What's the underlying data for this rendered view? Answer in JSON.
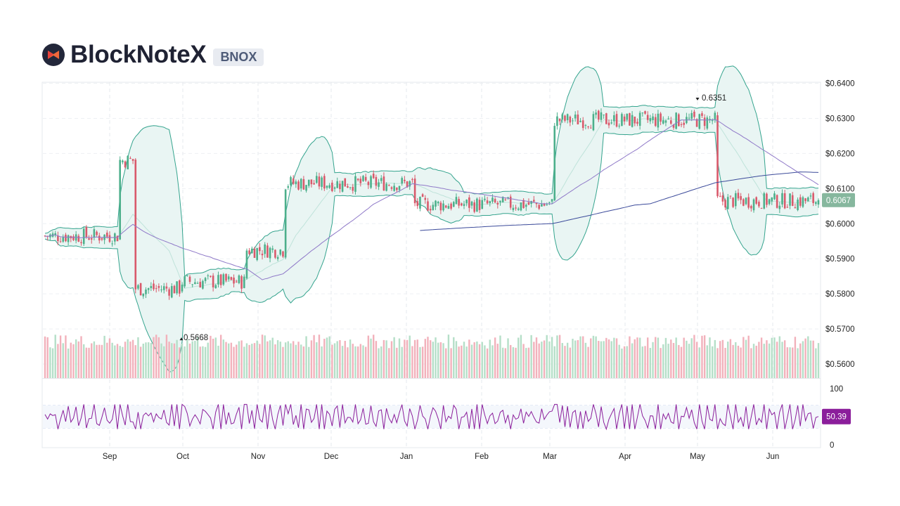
{
  "header": {
    "title": "BlockNoteX",
    "ticker": "BNOX"
  },
  "colors": {
    "up": "#4caf8b",
    "down": "#d9596b",
    "band": "#35a48e",
    "band_fill": "#e9f5f3",
    "ma_fast": "#8f79c8",
    "ma_slow": "#3b4a9a",
    "rsi": "#8b1e9b",
    "badge": "#86b79e"
  },
  "chart_data": {
    "type": "candlestick",
    "x_ticks": [
      "Sep",
      "Oct",
      "Nov",
      "Dec",
      "Jan",
      "Feb",
      "Mar",
      "Apr",
      "May",
      "Jun"
    ],
    "y_ticks": [
      "$0.6400",
      "$0.6300",
      "$0.6200",
      "$0.6100",
      "$0.6000",
      "$0.5900",
      "$0.5800",
      "$0.5700",
      "$0.5600"
    ],
    "ylim": [
      0.556,
      0.6403
    ],
    "last_price": "0.6067",
    "last_value": 0.6067,
    "high_marker": {
      "label": "0.6351",
      "value": 0.6351,
      "date": "May"
    },
    "low_marker": {
      "label": "0.5668",
      "value": 0.5668,
      "date": "Oct"
    },
    "price_levels": [
      {
        "from": 0.0,
        "to": 0.095,
        "value": 0.5965
      },
      {
        "from": 0.095,
        "to": 0.115,
        "value": 0.618
      },
      {
        "from": 0.115,
        "to": 0.175,
        "value": 0.5815
      },
      {
        "from": 0.175,
        "to": 0.26,
        "value": 0.5835
      },
      {
        "from": 0.26,
        "to": 0.31,
        "value": 0.5925
      },
      {
        "from": 0.31,
        "to": 0.475,
        "value": 0.6115
      },
      {
        "from": 0.475,
        "to": 0.655,
        "value": 0.6055
      },
      {
        "from": 0.655,
        "to": 0.865,
        "value": 0.6295
      },
      {
        "from": 0.865,
        "to": 1.0,
        "value": 0.6065
      }
    ],
    "indicators": [
      "Bollinger Bands",
      "Moving Average (fast)",
      "Moving Average (slow)",
      "Volume",
      "RSI"
    ],
    "rsi": {
      "y_ticks": [
        "100",
        "0"
      ],
      "last": "50.39",
      "last_value": 50.39,
      "upper": 70,
      "lower": 30
    }
  }
}
